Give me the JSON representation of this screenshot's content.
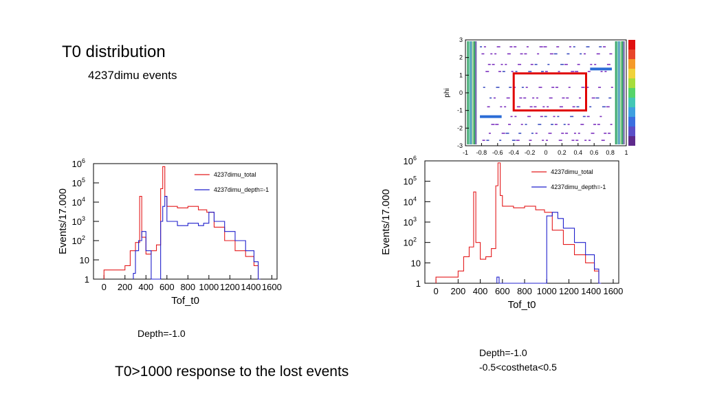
{
  "slide": {
    "title": "T0 distribution",
    "subtitle": "4237dimu events",
    "caption_left": "Depth=-1.0",
    "caption_right_1": "Depth=-1.0",
    "caption_right_2": "-0.5<costheta<0.5",
    "footer": "T0>1000 response to the lost events"
  },
  "colors": {
    "total": "#e41a1c",
    "depth": "#1f1fcc",
    "cut_box": "#e00000"
  },
  "chart_data": [
    {
      "type": "line",
      "step": true,
      "xlabel": "Tof_t0",
      "ylabel": "Events/17.000",
      "xlim": [
        -100,
        1650
      ],
      "ylim": [
        1,
        1000000
      ],
      "log_y": true,
      "x_ticks": [
        "0",
        "200",
        "400",
        "600",
        "800",
        "1000",
        "1200",
        "1400",
        "1600"
      ],
      "y_ticks": [
        "1",
        "10",
        "10",
        "10",
        "10",
        "10",
        "10"
      ],
      "y_tick_exponents": [
        "",
        "",
        "2",
        "3",
        "4",
        "5",
        "6"
      ],
      "legend_position": "top-right",
      "series": [
        {
          "name": "4237dimu_total",
          "color": "#e41a1c",
          "x": [
            0,
            200,
            250,
            300,
            340,
            360,
            400,
            450,
            500,
            540,
            560,
            580,
            600,
            700,
            800,
            900,
            980,
            1050,
            1150,
            1250,
            1350,
            1430,
            1470
          ],
          "y": [
            3,
            5,
            30,
            80,
            20000,
            150,
            20,
            30,
            60,
            50000,
            700000,
            20000,
            6000,
            5000,
            6000,
            4000,
            3000,
            500,
            100,
            30,
            15,
            5,
            1
          ]
        },
        {
          "name": "4237dimu_depth=-1",
          "color": "#1f1fcc",
          "x": [
            280,
            300,
            330,
            360,
            400,
            450,
            500,
            540,
            560,
            580,
            600,
            700,
            800,
            900,
            950,
            1000,
            1050,
            1150,
            1250,
            1350,
            1430,
            1470
          ],
          "y": [
            2,
            30,
            100,
            300,
            30,
            1,
            1,
            1000,
            6000,
            20000,
            1000,
            600,
            800,
            600,
            800,
            3000,
            1000,
            300,
            100,
            30,
            8,
            1
          ]
        }
      ]
    },
    {
      "type": "line",
      "step": true,
      "xlabel": "Tof_t0",
      "ylabel": "Events/17.000",
      "xlim": [
        -100,
        1650
      ],
      "ylim": [
        1,
        1000000
      ],
      "log_y": true,
      "x_ticks": [
        "0",
        "200",
        "400",
        "600",
        "800",
        "1000",
        "1200",
        "1400",
        "1600"
      ],
      "y_ticks": [
        "1",
        "10",
        "10",
        "10",
        "10",
        "10",
        "10"
      ],
      "y_tick_exponents": [
        "",
        "",
        "2",
        "3",
        "4",
        "5",
        "6"
      ],
      "legend_position": "top-right",
      "series": [
        {
          "name": "4237dimu_total",
          "color": "#e41a1c",
          "x": [
            0,
            200,
            250,
            300,
            340,
            360,
            400,
            450,
            500,
            540,
            560,
            580,
            600,
            700,
            800,
            900,
            980,
            1050,
            1150,
            1250,
            1350,
            1430,
            1470
          ],
          "y": [
            2,
            4,
            20,
            60,
            30000,
            100,
            15,
            20,
            50,
            60000,
            800000,
            20000,
            6000,
            5000,
            6000,
            4000,
            3000,
            400,
            80,
            25,
            10,
            4,
            1
          ]
        },
        {
          "name": "4237dimu_depth=-1",
          "color": "#1f1fcc",
          "x": [
            550,
            570,
            600,
            950,
            1000,
            1050,
            1100,
            1150,
            1250,
            1350,
            1430,
            1470
          ],
          "y": [
            2,
            1,
            1,
            1,
            2000,
            3000,
            1500,
            500,
            100,
            25,
            5,
            1
          ]
        }
      ]
    },
    {
      "type": "heatmap",
      "ylabel": "phi",
      "xlim": [
        -1,
        1
      ],
      "ylim": [
        -3,
        3
      ],
      "x_ticks": [
        "-1",
        "-0.8",
        "-0.6",
        "-0.4",
        "-0.2",
        "0",
        "0.2",
        "0.4",
        "0.6",
        "0.8",
        "1"
      ],
      "y_ticks": [
        "-3",
        "-2",
        "-1",
        "0",
        "1",
        "2",
        "3"
      ],
      "cut_region": {
        "x": [
          -0.4,
          0.5
        ],
        "y": [
          -1.0,
          1.1
        ]
      }
    }
  ]
}
